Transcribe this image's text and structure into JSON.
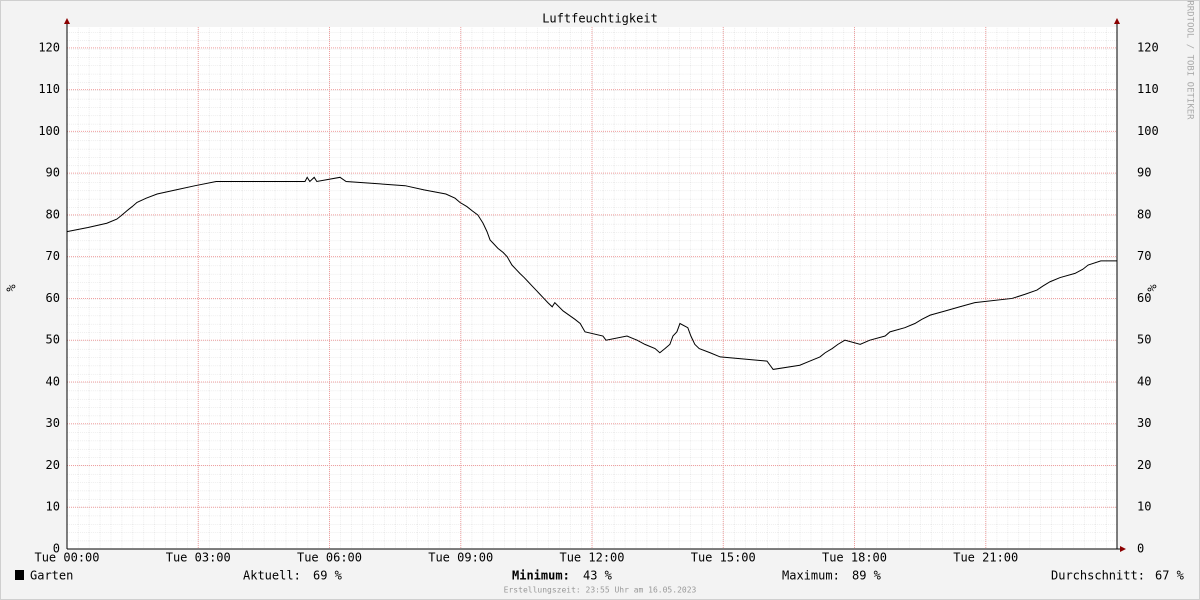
{
  "chart_data": {
    "type": "line",
    "title": "Luftfeuchtigkeit",
    "y_label": "%",
    "watermark": "RRDTOOL / TOBI OETIKER",
    "xlim": [
      0,
      24
    ],
    "ylim": [
      0,
      125
    ],
    "yticks": [
      0,
      10,
      20,
      30,
      40,
      50,
      60,
      70,
      80,
      90,
      100,
      110,
      120
    ],
    "xticks": [
      {
        "value": 0,
        "label": "Tue 00:00"
      },
      {
        "value": 3,
        "label": "Tue 03:00"
      },
      {
        "value": 6,
        "label": "Tue 06:00"
      },
      {
        "value": 9,
        "label": "Tue 09:00"
      },
      {
        "value": 12,
        "label": "Tue 12:00"
      },
      {
        "value": 15,
        "label": "Tue 15:00"
      },
      {
        "value": 18,
        "label": "Tue 18:00"
      },
      {
        "value": 21,
        "label": "Tue 21:00"
      }
    ],
    "grid": true,
    "x": [
      0,
      0.48,
      0.91,
      1.14,
      1.26,
      1.37,
      1.49,
      1.6,
      1.81,
      2.06,
      2.49,
      2.93,
      3.41,
      5.44,
      5.49,
      5.55,
      5.65,
      5.71,
      6.24,
      6.38,
      7.73,
      8.16,
      8.66,
      8.87,
      8.98,
      9.14,
      9.26,
      9.39,
      9.51,
      9.6,
      9.67,
      9.76,
      9.85,
      9.97,
      10.06,
      10.17,
      10.26,
      10.35,
      10.45,
      10.54,
      10.63,
      10.72,
      10.81,
      10.9,
      10.99,
      11.09,
      11.15,
      11.34,
      11.61,
      11.73,
      11.84,
      12.25,
      12.32,
      12.8,
      13.03,
      13.21,
      13.44,
      13.55,
      13.67,
      13.78,
      13.85,
      13.94,
      14.01,
      14.19,
      14.26,
      14.35,
      14.45,
      14.7,
      14.93,
      16.0,
      16.07,
      16.14,
      16.75,
      16.98,
      17.21,
      17.33,
      17.49,
      17.62,
      17.78,
      18.13,
      18.35,
      18.7,
      18.81,
      19.15,
      19.38,
      19.54,
      19.73,
      20.07,
      20.41,
      20.75,
      21.6,
      21.9,
      22.17,
      22.31,
      22.47,
      22.7,
      23.04,
      23.22,
      23.34,
      23.63,
      24
    ],
    "series": [
      {
        "name": "Garten",
        "color": "#000000",
        "values": [
          76,
          77,
          78,
          79,
          80,
          81,
          82,
          83,
          84,
          85,
          86,
          87,
          88,
          88,
          89,
          88,
          89,
          88,
          89,
          88,
          87,
          86,
          85,
          84,
          83,
          82,
          81,
          80,
          78,
          76,
          74,
          73,
          72,
          71,
          70,
          68,
          67,
          66,
          65,
          64,
          63,
          62,
          61,
          60,
          59,
          58,
          59,
          57,
          55,
          54,
          52,
          51,
          50,
          51,
          50,
          49,
          48,
          47,
          48,
          49,
          51,
          52,
          54,
          53,
          51,
          49,
          48,
          47,
          46,
          45,
          44,
          43,
          44,
          45,
          46,
          47,
          48,
          49,
          50,
          49,
          50,
          51,
          52,
          53,
          54,
          55,
          56,
          57,
          58,
          59,
          60,
          61,
          62,
          63,
          64,
          65,
          66,
          67,
          68,
          69,
          69
        ]
      }
    ],
    "stats": [
      {
        "label": "Aktuell:",
        "text": "69 %"
      },
      {
        "label": "Minimum:",
        "text": "43 %"
      },
      {
        "label": "Maximum:",
        "text": "89 %"
      },
      {
        "label": "Durchschnitt:",
        "text": "67 %"
      }
    ],
    "footer": "Erstellungszeit: 23:55 Uhr am 16.05.2023"
  }
}
